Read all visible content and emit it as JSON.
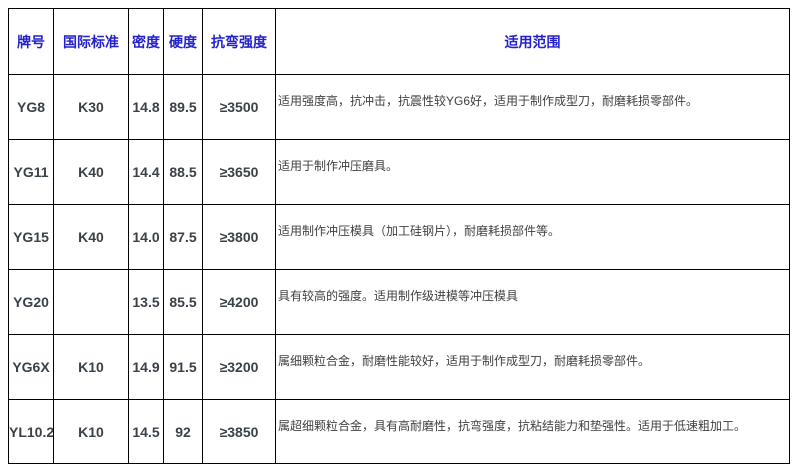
{
  "table": {
    "headers": {
      "grade": "牌号",
      "standard": "国际标准",
      "density": "密度",
      "hardness": "硬度",
      "strength": "抗弯强度",
      "range": "适用范围"
    },
    "rows": [
      {
        "grade": "YG8",
        "standard": "K30",
        "density": "14.8",
        "hardness": "89.5",
        "strength": "≥3500",
        "range": "适用强度高，抗冲击，抗震性较YG6好，适用于制作成型刀，耐磨耗损零部件。"
      },
      {
        "grade": "YG11",
        "standard": "K40",
        "density": "14.4",
        "hardness": "88.5",
        "strength": "≥3650",
        "range": "适用于制作冲压磨具。"
      },
      {
        "grade": "YG15",
        "standard": "K40",
        "density": "14.0",
        "hardness": "87.5",
        "strength": "≥3800",
        "range": "适用制作冲压模具（加工硅钢片），耐磨耗损部件等。"
      },
      {
        "grade": "YG20",
        "standard": "",
        "density": "13.5",
        "hardness": "85.5",
        "strength": "≥4200",
        "range": "具有较高的强度。适用制作级进模等冲压模具"
      },
      {
        "grade": "YG6X",
        "standard": "K10",
        "density": "14.9",
        "hardness": "91.5",
        "strength": "≥3200",
        "range": "属细颗粒合金，耐磨性能较好，适用于制作成型刀，耐磨耗损零部件。"
      },
      {
        "grade": "YL10.2",
        "standard": "K10",
        "density": "14.5",
        "hardness": "92",
        "strength": "≥3850",
        "range": "属超细颗粒合金，具有高耐磨性，抗弯强度，抗粘结能力和垫强性。适用于低速粗加工。"
      }
    ],
    "colors": {
      "header_text": "#2321cd",
      "body_text": "#3b4148",
      "border": "#000000",
      "background": "#ffffff"
    }
  }
}
